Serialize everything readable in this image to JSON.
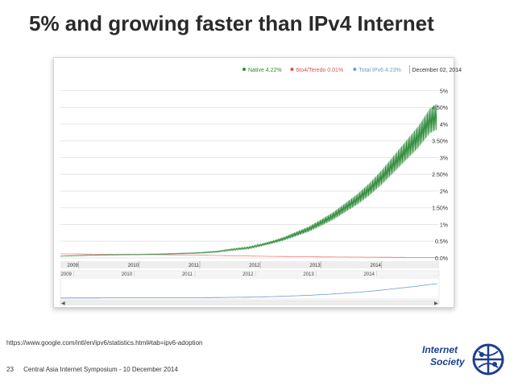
{
  "slide": {
    "title": "5% and growing faster than IPv4 Internet",
    "source_url": "https://www.google.com/intl/en/ipv6/statistics.html#tab=ipv6-adoption",
    "slide_number": "23",
    "footer_text": "Central Asia Internet Symposium - 10 December 2014"
  },
  "logo": {
    "line1": "Internet",
    "line2": "Society"
  },
  "colors": {
    "native": "#2e8b3a",
    "teredo": "#d9534f",
    "total": "#6c9bd2",
    "text": "#2a2a2a"
  },
  "chart_data": {
    "type": "line",
    "title": "",
    "legend": {
      "position": "top-right",
      "items": [
        {
          "name": "Native",
          "label": "Native 4.22%"
        },
        {
          "name": "6to4/Teredo",
          "label": "6to4/Teredo 0.01%"
        },
        {
          "name": "Total IPv6",
          "label": "Total IPv6 4.23%"
        }
      ],
      "date": "December 02, 2014"
    },
    "y_ticks": [
      "5%",
      "4.50%",
      "4%",
      "3.50%",
      "3%",
      "2.50%",
      "2%",
      "1.50%",
      "1%",
      "0.5%",
      "0.0%"
    ],
    "y_tick_values": [
      5,
      4.5,
      4,
      3.5,
      3,
      2.5,
      2,
      1.5,
      1,
      0.5,
      0
    ],
    "ylim": [
      0,
      5.3
    ],
    "x_ticks": [
      "2009",
      "2010",
      "2011",
      "2012",
      "2013",
      "2014"
    ],
    "xlim": [
      2008.7,
      2014.95
    ],
    "navigator_ticks": [
      "2009",
      "2010",
      "2011",
      "2012",
      "2013",
      "2014"
    ],
    "series": [
      {
        "name": "Native",
        "x": [
          2008.7,
          2009.0,
          2009.5,
          2010.0,
          2010.5,
          2011.0,
          2011.3,
          2011.5,
          2011.8,
          2012.0,
          2012.2,
          2012.4,
          2012.6,
          2012.8,
          2013.0,
          2013.2,
          2013.4,
          2013.6,
          2013.8,
          2014.0,
          2014.2,
          2014.4,
          2014.6,
          2014.8,
          2014.92
        ],
        "values": [
          0.05,
          0.07,
          0.09,
          0.1,
          0.12,
          0.15,
          0.19,
          0.24,
          0.3,
          0.38,
          0.47,
          0.58,
          0.72,
          0.86,
          1.05,
          1.25,
          1.5,
          1.75,
          2.05,
          2.4,
          2.8,
          3.2,
          3.6,
          4.1,
          4.22
        ],
        "weekly_amplitude_pct": 0.09
      },
      {
        "name": "6to4/Teredo",
        "x": [
          2008.7,
          2010.0,
          2011.0,
          2012.0,
          2013.0,
          2014.0,
          2014.92
        ],
        "values": [
          0.12,
          0.1,
          0.08,
          0.05,
          0.03,
          0.02,
          0.01
        ]
      }
    ]
  }
}
